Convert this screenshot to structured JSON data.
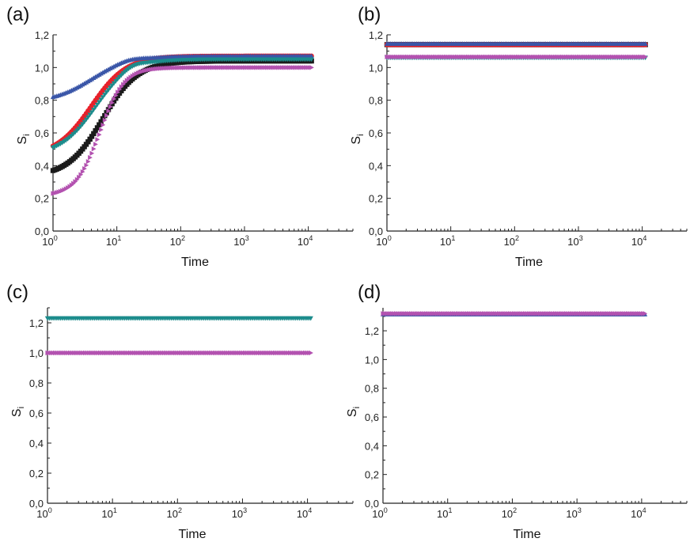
{
  "chart_data": [
    {
      "panel": "(a)",
      "type": "scatter",
      "xlabel": "Time",
      "ylabel": "S",
      "ylabel_sub": "i",
      "xscale": "log",
      "xlim": [
        1,
        50000
      ],
      "ylim": [
        0,
        1.2
      ],
      "yticks": [
        "0,0",
        "0,2",
        "0,4",
        "0,6",
        "0,8",
        "1,0",
        "1,2"
      ],
      "xticks": [
        {
          "base": "10",
          "exp": "0"
        },
        {
          "base": "10",
          "exp": "1"
        },
        {
          "base": "10",
          "exp": "2"
        },
        {
          "base": "10",
          "exp": "3"
        },
        {
          "base": "10",
          "exp": "4"
        }
      ],
      "series": [
        {
          "color": "#1a1a1a",
          "marker": "square",
          "kind": "logistic",
          "s0": 0.37,
          "sinf": 1.04,
          "t50": 6.0,
          "w": 0.55
        },
        {
          "color": "#e8202a",
          "marker": "circle",
          "kind": "logistic",
          "s0": 0.52,
          "sinf": 1.07,
          "t50": 4.0,
          "w": 0.55
        },
        {
          "color": "#3a56a8",
          "marker": "triangle-up",
          "kind": "overshoot",
          "s0": 0.82,
          "sinf": 1.07,
          "t50": 4.0,
          "w": 0.6,
          "peak": 1.08,
          "tpeak": 16
        },
        {
          "color": "#1c8c8c",
          "marker": "triangle-down",
          "kind": "overshoot",
          "s0": 0.51,
          "sinf": 1.05,
          "t50": 4.6,
          "w": 0.55,
          "peak": 1.07,
          "tpeak": 18
        },
        {
          "color": "#b352b0",
          "marker": "triangle-right",
          "kind": "logistic",
          "s0": 0.23,
          "sinf": 1.0,
          "t50": 5.5,
          "w": 0.38
        }
      ]
    },
    {
      "panel": "(b)",
      "type": "scatter",
      "xlabel": "Time",
      "ylabel": "S",
      "ylabel_sub": "i",
      "xscale": "log",
      "xlim": [
        1,
        50000
      ],
      "ylim": [
        0,
        1.2
      ],
      "yticks": [
        "0,0",
        "0,2",
        "0,4",
        "0,6",
        "0,8",
        "1,0",
        "1,2"
      ],
      "xticks": [
        {
          "base": "10",
          "exp": "0"
        },
        {
          "base": "10",
          "exp": "1"
        },
        {
          "base": "10",
          "exp": "2"
        },
        {
          "base": "10",
          "exp": "3"
        },
        {
          "base": "10",
          "exp": "4"
        }
      ],
      "series": [
        {
          "color": "#1a1a1a",
          "marker": "square",
          "kind": "constant",
          "value": 1.14
        },
        {
          "color": "#e8202a",
          "marker": "circle",
          "kind": "constant",
          "value": 1.14
        },
        {
          "color": "#3a56a8",
          "marker": "triangle-up",
          "kind": "constant",
          "value": 1.145
        },
        {
          "color": "#1c8c8c",
          "marker": "triangle-down",
          "kind": "constant",
          "value": 1.06
        },
        {
          "color": "#b352b0",
          "marker": "triangle-right",
          "kind": "constant",
          "value": 1.065
        }
      ]
    },
    {
      "panel": "(c)",
      "type": "scatter",
      "xlabel": "Time",
      "ylabel": "S",
      "ylabel_sub": "i",
      "xscale": "log",
      "xlim": [
        1,
        50000
      ],
      "ylim": [
        0,
        1.3
      ],
      "yticks": [
        "0,0",
        "0,2",
        "0,4",
        "0,6",
        "0,8",
        "1,0",
        "1,2"
      ],
      "xticks": [
        {
          "base": "10",
          "exp": "0"
        },
        {
          "base": "10",
          "exp": "1"
        },
        {
          "base": "10",
          "exp": "2"
        },
        {
          "base": "10",
          "exp": "3"
        },
        {
          "base": "10",
          "exp": "4"
        }
      ],
      "series": [
        {
          "color": "#1c8c8c",
          "marker": "triangle-down",
          "kind": "constant",
          "value": 1.23
        },
        {
          "color": "#b352b0",
          "marker": "triangle-right",
          "kind": "constant",
          "value": 1.0
        }
      ]
    },
    {
      "panel": "(d)",
      "type": "scatter",
      "xlabel": "Time",
      "ylabel": "S",
      "ylabel_sub": "i",
      "xscale": "log",
      "xlim": [
        1,
        50000
      ],
      "ylim": [
        0,
        1.36
      ],
      "yticks": [
        "0,0",
        "0,2",
        "0,4",
        "0,6",
        "0,8",
        "1,0",
        "1,2"
      ],
      "xticks": [
        {
          "base": "10",
          "exp": "0"
        },
        {
          "base": "10",
          "exp": "1"
        },
        {
          "base": "10",
          "exp": "2"
        },
        {
          "base": "10",
          "exp": "3"
        },
        {
          "base": "10",
          "exp": "4"
        }
      ],
      "series": [
        {
          "color": "#3a56a8",
          "marker": "triangle-up",
          "kind": "constant",
          "value": 1.315
        },
        {
          "color": "#b352b0",
          "marker": "triangle-right",
          "kind": "constant",
          "value": 1.32
        }
      ]
    }
  ]
}
